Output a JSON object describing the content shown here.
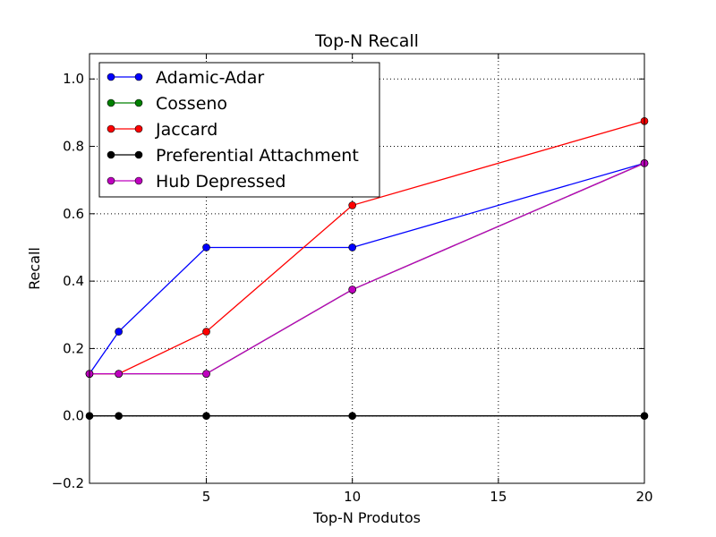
{
  "chart_data": {
    "type": "line",
    "title": "Top-N Recall",
    "xlabel": "Top-N Produtos",
    "ylabel": "Recall",
    "x": [
      1,
      2,
      5,
      10,
      20
    ],
    "xlim": [
      1,
      20
    ],
    "ylim": [
      -0.2,
      1.075
    ],
    "xticks": [
      5,
      10,
      15,
      20
    ],
    "xtick_labels": [
      "5",
      "10",
      "15",
      "20"
    ],
    "yticks": [
      -0.2,
      0.0,
      0.2,
      0.4,
      0.6,
      0.8,
      1.0
    ],
    "ytick_labels": [
      "−0.2",
      "0.0",
      "0.2",
      "0.4",
      "0.6",
      "0.8",
      "1.0"
    ],
    "grid": true,
    "legend_position": "top-left",
    "series": [
      {
        "name": "Adamic-Adar",
        "color": "#0000ff",
        "values": [
          0.125,
          0.25,
          0.5,
          0.5,
          0.75
        ]
      },
      {
        "name": "Cosseno",
        "color": "#008000",
        "values": [
          0.125,
          0.125,
          0.125,
          0.375,
          0.75
        ]
      },
      {
        "name": "Jaccard",
        "color": "#ff0000",
        "values": [
          0.125,
          0.125,
          0.25,
          0.625,
          0.875
        ]
      },
      {
        "name": "Preferential Attachment",
        "color": "#000000",
        "values": [
          0.0,
          0.0,
          0.0,
          0.0,
          0.0
        ]
      },
      {
        "name": "Hub Depressed",
        "color": "#bf00bf",
        "values": [
          0.125,
          0.125,
          0.125,
          0.375,
          0.75
        ]
      }
    ]
  }
}
